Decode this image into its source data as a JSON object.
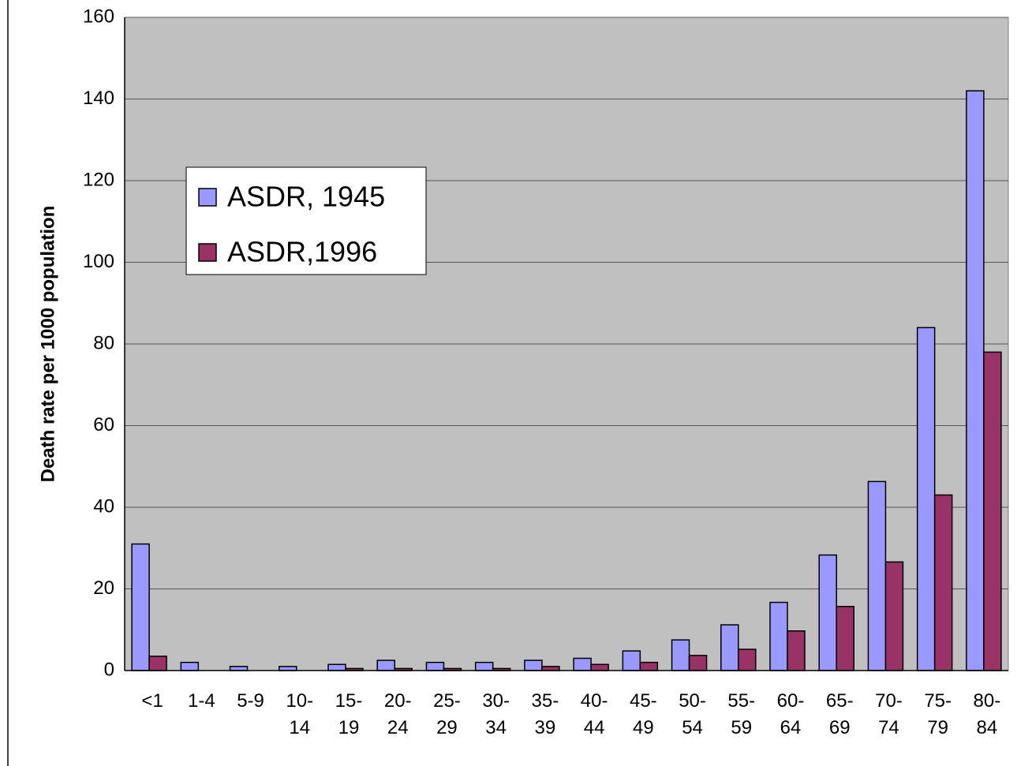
{
  "chart_data": {
    "type": "bar",
    "y_label": "Death rate per 1000 population",
    "categories": [
      "<1",
      "1-4",
      "5-9",
      "10-14",
      "15-19",
      "20-24",
      "25-29",
      "30-34",
      "35-39",
      "40-44",
      "45-49",
      "50-54",
      "55-59",
      "60-64",
      "65-69",
      "70-74",
      "75-79",
      "80-84"
    ],
    "series": [
      {
        "name": "ASDR, 1945",
        "color": "#9999ff",
        "values": [
          31,
          2,
          1,
          1,
          1.5,
          2.5,
          2,
          2,
          2.5,
          3,
          4.8,
          7.5,
          11.2,
          16.7,
          28.3,
          46.3,
          84,
          142
        ]
      },
      {
        "name": "ASDR,1996",
        "color": "#993366",
        "values": [
          3.5,
          0,
          0,
          0,
          0.5,
          0.5,
          0.5,
          0.5,
          1,
          1.5,
          2,
          3.7,
          5.2,
          9.7,
          15.7,
          26.6,
          43,
          78
        ]
      }
    ],
    "ylim": [
      0,
      160
    ],
    "yticks": [
      0,
      20,
      40,
      60,
      80,
      100,
      120,
      140,
      160
    ],
    "grid": true,
    "legend": "upper left"
  }
}
